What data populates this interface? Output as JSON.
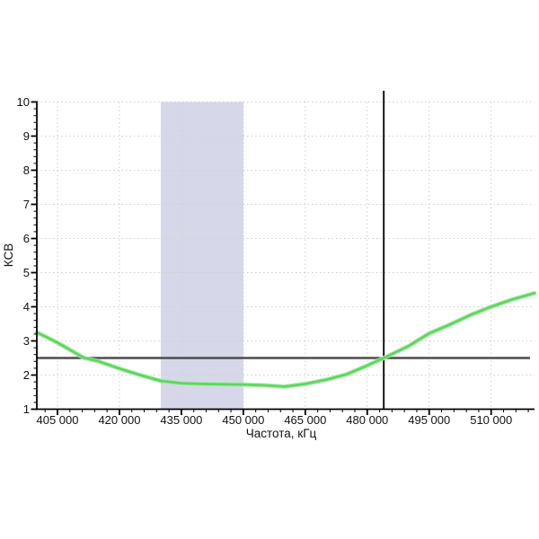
{
  "chart_data": {
    "type": "line",
    "title": "",
    "xlabel": "Частота, кГц",
    "ylabel": "КСВ",
    "x_domain": [
      400000,
      520500
    ],
    "y_domain": [
      1,
      10
    ],
    "x_major_ticks": [
      405000,
      420000,
      435000,
      450000,
      465000,
      480000,
      495000,
      510000
    ],
    "x_tick_labels": [
      "405 000",
      "420 000",
      "435 000",
      "450 000",
      "465 000",
      "480 000",
      "495 000",
      "510 000"
    ],
    "x_minor_step": 3000,
    "y_major_ticks": [
      1,
      2,
      3,
      4,
      5,
      6,
      7,
      8,
      9,
      10
    ],
    "y_tick_labels": [
      "1",
      "2",
      "3",
      "4",
      "5",
      "6",
      "7",
      "8",
      "9",
      "10"
    ],
    "y_minor_step": 0.2,
    "grid": "major-dotted",
    "legend": "none",
    "band": {
      "name": "highlighted-frequency-band",
      "x_from": 430000,
      "x_to": 450000,
      "color": "#d6d8e9"
    },
    "markers": {
      "horizontal_y": 2.5,
      "vertical_x": 484000,
      "horizontal_color": "#4d4d4d",
      "vertical_color": "#000000"
    },
    "series": [
      {
        "name": "КСВ",
        "color": "#5fd65f",
        "halo_color": "#a8eba8",
        "points": [
          [
            400000,
            3.25
          ],
          [
            405000,
            2.95
          ],
          [
            410000,
            2.6
          ],
          [
            411500,
            2.5
          ],
          [
            415000,
            2.4
          ],
          [
            420000,
            2.19
          ],
          [
            425000,
            2.0
          ],
          [
            430000,
            1.83
          ],
          [
            435000,
            1.76
          ],
          [
            440000,
            1.74
          ],
          [
            445000,
            1.73
          ],
          [
            450000,
            1.72
          ],
          [
            455000,
            1.7
          ],
          [
            460000,
            1.66
          ],
          [
            465000,
            1.74
          ],
          [
            470000,
            1.86
          ],
          [
            475000,
            2.02
          ],
          [
            480000,
            2.28
          ],
          [
            484000,
            2.5
          ],
          [
            490000,
            2.85
          ],
          [
            495000,
            3.22
          ],
          [
            500000,
            3.48
          ],
          [
            505000,
            3.76
          ],
          [
            510000,
            4.0
          ],
          [
            515000,
            4.21
          ],
          [
            520500,
            4.4
          ]
        ]
      }
    ],
    "style": {
      "grid_color": "#cfcfcf",
      "axis_color": "#000000",
      "tick_label_color": "#111111",
      "background": "#ffffff"
    }
  }
}
